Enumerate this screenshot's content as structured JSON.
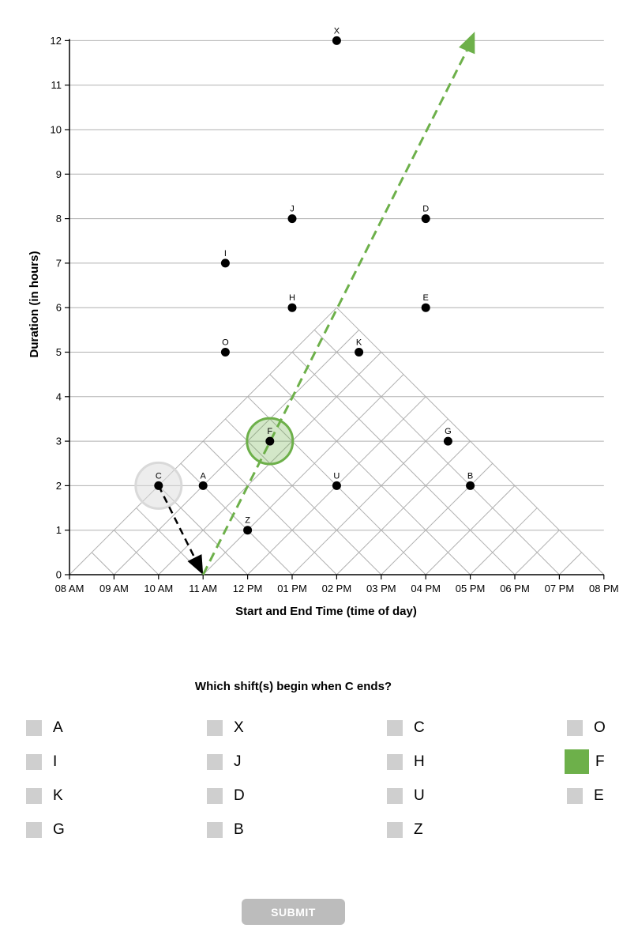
{
  "chart_data": {
    "type": "scatter",
    "xlabel": "Start and End Time (time of day)",
    "ylabel": "Duration (in hours)",
    "x_ticks": [
      "08 AM",
      "09 AM",
      "10 AM",
      "11 AM",
      "12 PM",
      "01 PM",
      "02 PM",
      "03 PM",
      "04 PM",
      "05 PM",
      "06 PM",
      "07 PM",
      "08 PM"
    ],
    "y_ticks": [
      "0",
      "1",
      "2",
      "3",
      "4",
      "5",
      "6",
      "7",
      "8",
      "9",
      "10",
      "11",
      "12"
    ],
    "xlim": [
      8,
      20
    ],
    "ylim": [
      0,
      12
    ],
    "grid": true,
    "points": [
      {
        "label": "X",
        "x": 14,
        "y": 12
      },
      {
        "label": "J",
        "x": 13,
        "y": 8
      },
      {
        "label": "D",
        "x": 16,
        "y": 8
      },
      {
        "label": "I",
        "x": 11.5,
        "y": 7
      },
      {
        "label": "H",
        "x": 13,
        "y": 6
      },
      {
        "label": "E",
        "x": 16,
        "y": 6
      },
      {
        "label": "O",
        "x": 11.5,
        "y": 5
      },
      {
        "label": "K",
        "x": 14.5,
        "y": 5
      },
      {
        "label": "F",
        "x": 12.5,
        "y": 3
      },
      {
        "label": "G",
        "x": 16.5,
        "y": 3
      },
      {
        "label": "C",
        "x": 10,
        "y": 2
      },
      {
        "label": "A",
        "x": 11,
        "y": 2
      },
      {
        "label": "U",
        "x": 14,
        "y": 2
      },
      {
        "label": "B",
        "x": 17,
        "y": 2
      },
      {
        "label": "Z",
        "x": 12,
        "y": 1
      }
    ],
    "highlighted": {
      "reference": "C",
      "answer": "F"
    },
    "colors": {
      "answer": "#6db04a",
      "reference": "#d9d9d9",
      "arrow": "#000000",
      "grid": "#b0b0b0"
    }
  },
  "question": "Which shift(s) begin when C ends?",
  "options": [
    {
      "label": "A",
      "selected": false
    },
    {
      "label": "X",
      "selected": false
    },
    {
      "label": "C",
      "selected": false
    },
    {
      "label": "O",
      "selected": false
    },
    {
      "label": "I",
      "selected": false
    },
    {
      "label": "J",
      "selected": false
    },
    {
      "label": "H",
      "selected": false
    },
    {
      "label": "F",
      "selected": true
    },
    {
      "label": "K",
      "selected": false
    },
    {
      "label": "D",
      "selected": false
    },
    {
      "label": "U",
      "selected": false
    },
    {
      "label": "E",
      "selected": false
    },
    {
      "label": "G",
      "selected": false
    },
    {
      "label": "B",
      "selected": false
    },
    {
      "label": "Z",
      "selected": false
    }
  ],
  "submit_label": "SUBMIT"
}
